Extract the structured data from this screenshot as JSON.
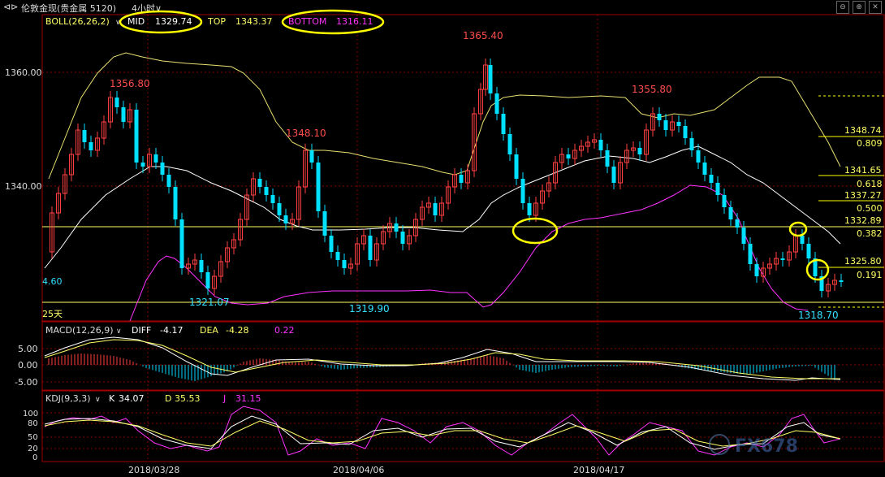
{
  "window": {
    "title": "伦敦金现(贵金属 5120)",
    "period": "4小时",
    "controls": [
      "⊖",
      "⊕",
      "✕"
    ]
  },
  "boll_panel": {
    "label": "BOLL(26,26,2)",
    "mid_label": "MID",
    "mid_value": "1329.74",
    "top_label": "TOP",
    "top_value": "1343.37",
    "bottom_label": "BOTTOM",
    "bottom_value": "1316.11",
    "y_labels": [
      "1360.00",
      "1340.00"
    ],
    "left_partial_value": "4.60",
    "left_partial_label": "25天",
    "annotations": {
      "high1": "1356.80",
      "high2": "1348.10",
      "high3": "1365.40",
      "high4": "1355.80",
      "low1": "1321.07",
      "low2": "1319.90",
      "low3": "1318.70"
    },
    "fib_levels": [
      {
        "price": "1348.74",
        "ratio": "0.809"
      },
      {
        "price": "1341.65",
        "ratio": "0.618"
      },
      {
        "price": "1337.27",
        "ratio": "0.500"
      },
      {
        "price": "1332.89",
        "ratio": "0.382"
      },
      {
        "price": "1325.80",
        "ratio": "0.191"
      }
    ]
  },
  "macd_panel": {
    "label": "MACD(12,26,9)",
    "diff_label": "DIFF",
    "diff_value": "-4.17",
    "dea_label": "DEA",
    "dea_value": "-4.28",
    "macd_value": "0.22",
    "y_labels": [
      "5.00",
      "0.00",
      "-5.00"
    ]
  },
  "kdj_panel": {
    "label": "KDJ(9,3,3)",
    "k_label": "K",
    "k_value": "34.07",
    "d_label": "D",
    "d_value": "35.53",
    "j_label": "J",
    "j_value": "31.15",
    "y_labels": [
      "100",
      "80",
      "50",
      "20",
      "0"
    ]
  },
  "x_axis": {
    "dates": [
      "2018/03/28",
      "2018/04/06",
      "2018/04/17"
    ]
  },
  "watermark": {
    "text": "FX678"
  },
  "colors": {
    "up": "#ff4040",
    "down": "#00e0ff",
    "boll_mid": "#ffffff",
    "boll_top": "#ffff66",
    "boll_bottom": "#ff33ff",
    "fib": "#ffff00",
    "grid": "#8b0000",
    "highlight": "#ffff00"
  }
}
